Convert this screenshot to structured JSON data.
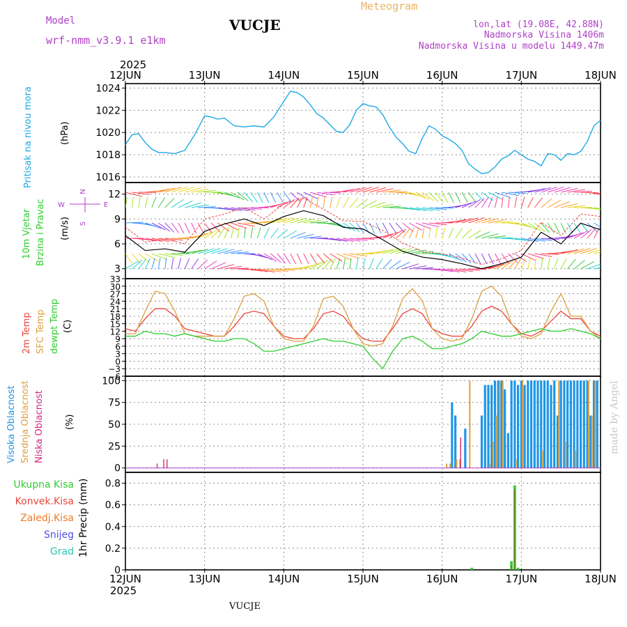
{
  "header": {
    "model_label": "Model",
    "model_name": "wrf-nmm_v3.9.1  e1km",
    "station": "VUCJE",
    "product": "Meteogram",
    "coords": "lon,lat (19.08E, 42.88N)",
    "altitude": "Nadmorska Visina 1406m",
    "model_altitude": "Nadmorska Visina u modelu 1449.47m",
    "year_top": "2025",
    "year_bottom": "2025",
    "footer_station": "VUCJE",
    "credit": "made by Angel"
  },
  "colors": {
    "pressure": "#1ea8e6",
    "temp2m": "#e8463c",
    "sfc_temp": "#dca040",
    "dewpoint": "#2ecc2e",
    "cloud_high": "#1e96e6",
    "cloud_mid": "#dca040",
    "cloud_low": "#d2287a",
    "precip_total": "#2ecc2e",
    "precip_conv": "#e8463c",
    "precip_frozen": "#f07828",
    "snow": "#5050e6",
    "hail": "#28c8b4",
    "wind_speed": "#000000",
    "gust": "#e8463c",
    "grid": "#8c8c8c"
  },
  "chart_data": [
    {
      "type": "line",
      "title": "",
      "ylabel_outer": "Pritisak na nivou mora",
      "ylabel_unit": "(hPa)",
      "x_days": [
        "12JUN",
        "13JUN",
        "14JUN",
        "15JUN",
        "16JUN",
        "17JUN",
        "18JUN"
      ],
      "ylim": [
        1015.5,
        1024.4
      ],
      "yticks": [
        1016,
        1018,
        1020,
        1022,
        1024
      ],
      "grid": true,
      "series": [
        {
          "name": "Pritisak na nivou mora",
          "x_hours": [
            0,
            2,
            4,
            6,
            8,
            10,
            12,
            15,
            18,
            21,
            24,
            26,
            28,
            30,
            33,
            36,
            39,
            42,
            45,
            48,
            50,
            52,
            54,
            56,
            58,
            60,
            62,
            64,
            66,
            68,
            70,
            72,
            74,
            76,
            78,
            80,
            82,
            84,
            86,
            88,
            90,
            92,
            94,
            96,
            98,
            100,
            102,
            104,
            106,
            108,
            110,
            112,
            114,
            116,
            118,
            120,
            122,
            124,
            126,
            128,
            130,
            132,
            134,
            136,
            138,
            140,
            142,
            144
          ],
          "values": [
            1018.9,
            1019.8,
            1019.9,
            1019.1,
            1018.5,
            1018.2,
            1018.2,
            1018.1,
            1018.4,
            1019.8,
            1021.5,
            1021.4,
            1021.2,
            1021.3,
            1020.6,
            1020.5,
            1020.6,
            1020.5,
            1021.4,
            1022.8,
            1023.7,
            1023.6,
            1023.2,
            1022.5,
            1021.7,
            1021.3,
            1020.7,
            1020.1,
            1020.0,
            1020.7,
            1022.0,
            1022.6,
            1022.4,
            1022.3,
            1021.6,
            1020.5,
            1019.6,
            1019.0,
            1018.3,
            1018.1,
            1019.5,
            1020.6,
            1020.3,
            1019.7,
            1019.4,
            1019.0,
            1018.4,
            1017.2,
            1016.7,
            1016.3,
            1016.4,
            1016.9,
            1017.6,
            1017.9,
            1018.4,
            1018.0,
            1017.6,
            1017.4,
            1017.0,
            1018.1,
            1018.0,
            1017.5,
            1018.1,
            1018.0,
            1018.3,
            1019.2,
            1020.6,
            1021.1
          ]
        }
      ]
    },
    {
      "type": "line",
      "title": "",
      "ylabel_outer": "10m Vjetar Brzina i Pravac",
      "ylabel_unit": "(m/s)",
      "compass": [
        "N",
        "E",
        "W",
        "S"
      ],
      "ylim": [
        1.8,
        13.4
      ],
      "yticks": [
        3,
        6,
        9,
        12
      ],
      "grid": true,
      "series": [
        {
          "name": "speed",
          "x_hours": [
            0,
            6,
            12,
            18,
            24,
            30,
            36,
            42,
            48,
            54,
            60,
            66,
            72,
            78,
            84,
            90,
            96,
            102,
            108,
            114,
            120,
            126,
            132,
            138,
            144
          ],
          "values": [
            7.0,
            5.2,
            5.4,
            5.0,
            7.5,
            8.4,
            9.0,
            8.2,
            9.3,
            10.0,
            9.4,
            8.0,
            7.8,
            6.5,
            5.1,
            4.4,
            4.1,
            3.6,
            3.0,
            3.6,
            4.4,
            7.4,
            6.0,
            8.5,
            7.7
          ]
        },
        {
          "name": "gusts",
          "x_hours": [
            0,
            6,
            12,
            18,
            24,
            30,
            36,
            42,
            48,
            54,
            60,
            66,
            72,
            78,
            84,
            90,
            96,
            102,
            108,
            114,
            120,
            126,
            132,
            138,
            144
          ],
          "values": [
            8.0,
            6.2,
            6.6,
            6.0,
            9.0,
            9.6,
            10.4,
            9.0,
            10.8,
            11.5,
            10.2,
            8.8,
            8.7,
            7.6,
            6.1,
            5.1,
            4.8,
            4.3,
            3.5,
            4.2,
            5.2,
            8.6,
            7.0,
            9.6,
            9.3
          ]
        }
      ]
    },
    {
      "type": "line",
      "title": "",
      "ylabel_outer": [
        "2m Temp",
        "SFC Temp",
        "dewpt Temp"
      ],
      "ylabel_unit": "(C)",
      "ylim": [
        -6,
        33
      ],
      "yticks": [
        -6,
        -3,
        0,
        3,
        6,
        9,
        12,
        15,
        18,
        21,
        24,
        27,
        30,
        33
      ],
      "grid": true,
      "series": [
        {
          "name": "2m Temp",
          "x_hours": [
            0,
            3,
            6,
            9,
            12,
            15,
            18,
            21,
            24,
            27,
            30,
            33,
            36,
            39,
            42,
            45,
            48,
            51,
            54,
            57,
            60,
            63,
            66,
            69,
            72,
            75,
            78,
            81,
            84,
            87,
            90,
            93,
            96,
            99,
            102,
            105,
            108,
            111,
            114,
            117,
            120,
            123,
            126,
            129,
            132,
            135,
            138,
            141,
            144
          ],
          "values": [
            13,
            12,
            17,
            21,
            21,
            18,
            13,
            12,
            11,
            10,
            10,
            14,
            19,
            20,
            19,
            14,
            10,
            9,
            9,
            13,
            19,
            20,
            18,
            13,
            9,
            8,
            8,
            13,
            19,
            21,
            19,
            13,
            11,
            10,
            10,
            14,
            20,
            22,
            20,
            15,
            11,
            10,
            12,
            16,
            20,
            17,
            17,
            12,
            10
          ]
        },
        {
          "name": "SFC Temp",
          "x_hours": [
            0,
            3,
            6,
            9,
            12,
            15,
            18,
            21,
            24,
            27,
            30,
            33,
            36,
            39,
            42,
            45,
            48,
            51,
            54,
            57,
            60,
            63,
            66,
            69,
            72,
            75,
            78,
            81,
            84,
            87,
            90,
            93,
            96,
            99,
            102,
            105,
            108,
            111,
            114,
            117,
            120,
            123,
            126,
            129,
            132,
            135,
            138,
            141,
            144
          ],
          "values": [
            11,
            11,
            20,
            28,
            27,
            20,
            11,
            10,
            10,
            10,
            10,
            17,
            26,
            27,
            24,
            14,
            9,
            8,
            8,
            14,
            25,
            26,
            22,
            13,
            7,
            6,
            7,
            14,
            25,
            29,
            24,
            13,
            9,
            8,
            9,
            17,
            28,
            30,
            26,
            15,
            10,
            9,
            11,
            20,
            27,
            18,
            18,
            12,
            9
          ]
        },
        {
          "name": "dewpt Temp",
          "x_hours": [
            0,
            3,
            6,
            9,
            12,
            15,
            18,
            21,
            24,
            27,
            30,
            33,
            36,
            39,
            42,
            45,
            48,
            51,
            54,
            57,
            60,
            63,
            66,
            69,
            72,
            75,
            78,
            81,
            84,
            87,
            90,
            93,
            96,
            99,
            102,
            105,
            108,
            111,
            114,
            117,
            120,
            123,
            126,
            129,
            132,
            135,
            138,
            141,
            144
          ],
          "values": [
            10,
            10,
            12,
            11,
            11,
            10,
            11,
            10,
            9,
            8,
            8,
            9,
            9,
            7,
            4,
            4,
            5,
            6,
            7,
            8,
            9,
            8,
            8,
            7,
            6,
            1,
            -3,
            4,
            9,
            10,
            8,
            5,
            5,
            6,
            7,
            9,
            12,
            11,
            10,
            10,
            11,
            12,
            13,
            12,
            12,
            13,
            12,
            11,
            9
          ]
        }
      ]
    },
    {
      "type": "bar",
      "title": "",
      "ylabel_outer": [
        "Visoka Oblacnost",
        "Srednja Oblacnost",
        "Niska Oblacnost"
      ],
      "ylabel_unit": "(%)",
      "ylim": [
        -5,
        105
      ],
      "yticks": [
        0,
        25,
        50,
        75,
        100
      ],
      "grid": true,
      "series": [
        {
          "name": "Visoka Oblacnost",
          "x_hours": [
            99,
            100,
            103,
            108,
            109,
            110,
            111,
            112,
            113,
            114,
            115,
            116,
            117,
            118,
            119,
            120,
            121,
            122,
            123,
            124,
            125,
            126,
            127,
            128,
            129,
            130,
            131,
            132,
            133,
            134,
            135,
            136,
            137,
            138,
            139,
            140,
            141,
            142,
            143
          ],
          "values": [
            75,
            60,
            45,
            60,
            95,
            95,
            95,
            100,
            100,
            100,
            90,
            40,
            100,
            100,
            95,
            100,
            95,
            100,
            100,
            100,
            100,
            100,
            100,
            100,
            95,
            100,
            60,
            100,
            100,
            100,
            100,
            100,
            100,
            100,
            100,
            100,
            60,
            100,
            100
          ]
        },
        {
          "name": "Srednja Oblacnost",
          "x_hours": [
            97,
            98,
            100,
            101,
            104,
            110,
            111,
            112,
            113,
            114,
            118,
            120,
            126,
            131,
            133,
            136,
            140,
            141,
            142
          ],
          "values": [
            5,
            5,
            10,
            10,
            100,
            5,
            30,
            60,
            100,
            100,
            10,
            100,
            20,
            100,
            30,
            20,
            100,
            60,
            100
          ]
        },
        {
          "name": "Niska Oblacnost",
          "x_hours": [
            10,
            12,
            13,
            102
          ],
          "values": [
            5,
            10,
            10,
            35
          ]
        }
      ]
    },
    {
      "type": "bar",
      "title": "",
      "ylabel_outer": [
        "Ukupna Kisa",
        "Konvek.Kisa",
        "Zaledj.Kisa",
        "Snijeg",
        "Grad"
      ],
      "ylabel_unit": "1hr Precip (mm)",
      "ylim": [
        0,
        0.9
      ],
      "yticks": [
        0,
        0.2,
        0.4,
        0.6,
        0.8
      ],
      "grid": true,
      "series": [
        {
          "name": "Ukupna Kisa",
          "x_hours": [
            105,
            117,
            118,
            119
          ],
          "values": [
            0.02,
            0.08,
            0.78,
            0.02
          ]
        }
      ]
    }
  ]
}
